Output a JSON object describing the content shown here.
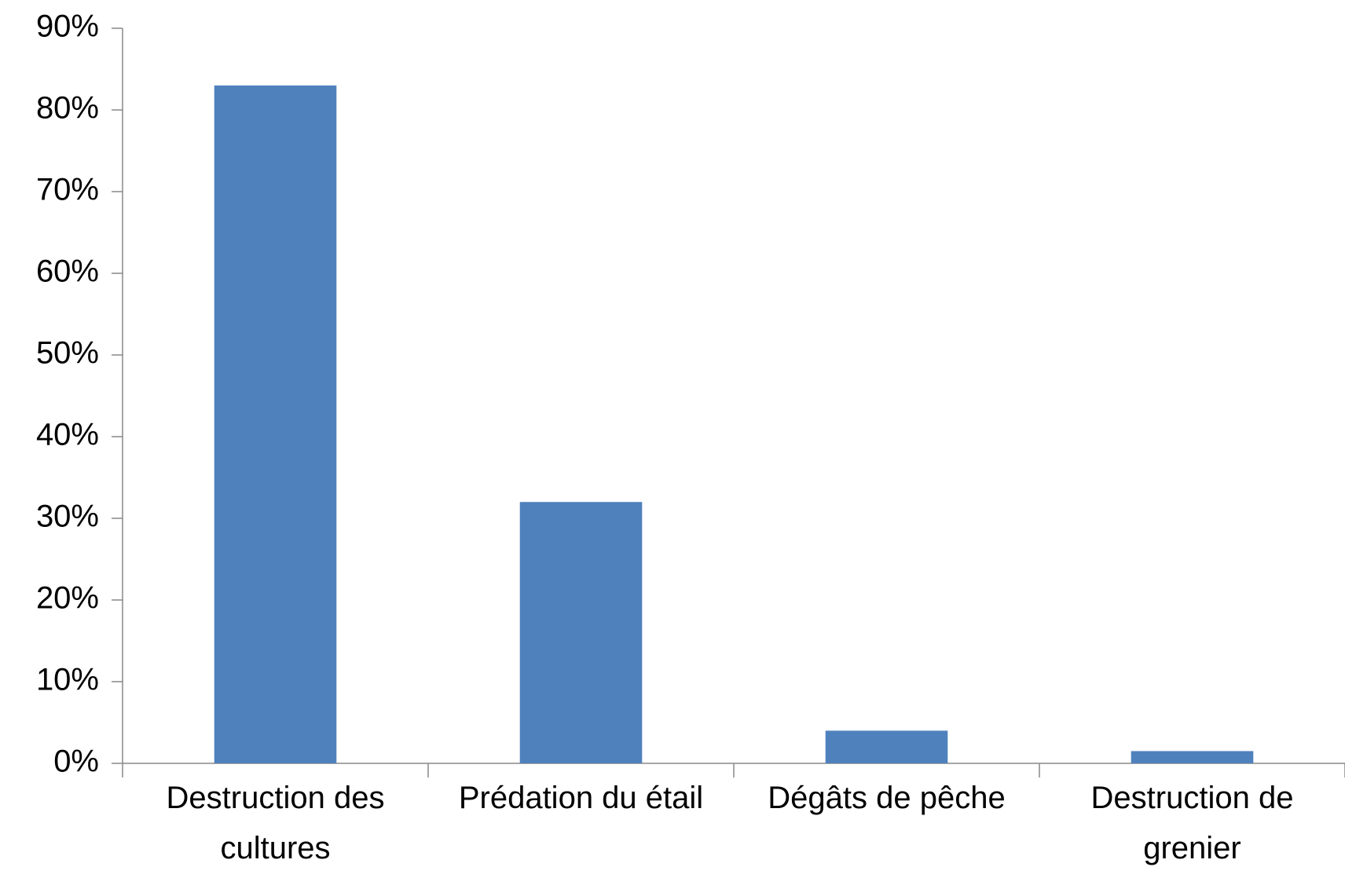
{
  "chart_data": {
    "type": "bar",
    "categories": [
      "Destruction des cultures",
      "Prédation du étail",
      "Dégâts de pêche",
      "Destruction de grenier"
    ],
    "values": [
      83,
      32,
      4,
      1.5
    ],
    "color": "#4f81bd",
    "ylim": [
      0,
      90
    ],
    "yticks": [
      {
        "value": 0,
        "label": "0%"
      },
      {
        "value": 10,
        "label": "10%"
      },
      {
        "value": 20,
        "label": "20%"
      },
      {
        "value": 30,
        "label": "30%"
      },
      {
        "value": 40,
        "label": "40%"
      },
      {
        "value": 50,
        "label": "50%"
      },
      {
        "value": 60,
        "label": "60%"
      },
      {
        "value": 70,
        "label": "70%"
      },
      {
        "value": 80,
        "label": "80%"
      },
      {
        "value": 90,
        "label": "90%"
      }
    ],
    "grid": false
  }
}
